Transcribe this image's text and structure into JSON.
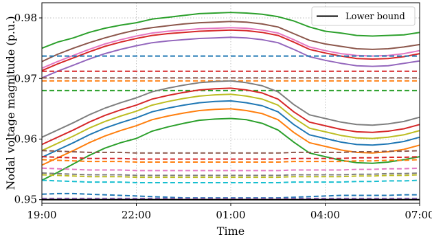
{
  "chart_data": {
    "type": "line",
    "xlabel": "Time",
    "ylabel": "Nodal voltage magnitude (p.u.)",
    "x_ticks": [
      "19:00",
      "22:00",
      "01:00",
      "04:00",
      "07:00"
    ],
    "y_ticks": [
      "0.95",
      "0.96",
      "0.97",
      "0.98"
    ],
    "y_tick_values": [
      0.95,
      0.96,
      0.97,
      0.98
    ],
    "ylim": [
      0.9494,
      0.9825
    ],
    "grid": true,
    "legend_position": "top-right",
    "legend": [
      {
        "label": "Lower bound",
        "color": "#000000",
        "dash": "solid"
      }
    ],
    "x": [
      "19:00",
      "19:30",
      "20:00",
      "20:30",
      "21:00",
      "21:30",
      "22:00",
      "22:30",
      "23:00",
      "23:30",
      "00:00",
      "00:30",
      "01:00",
      "01:30",
      "02:00",
      "02:30",
      "03:00",
      "03:30",
      "04:00",
      "04:30",
      "05:00",
      "05:30",
      "06:00",
      "06:30",
      "07:00"
    ],
    "lower_bound": 0.95,
    "series": [
      {
        "color": "#2ca02c",
        "dash": "solid",
        "values": [
          0.975,
          0.976,
          0.9767,
          0.9776,
          0.9783,
          0.9788,
          0.9792,
          0.9798,
          0.9801,
          0.9804,
          0.9807,
          0.9808,
          0.9809,
          0.9808,
          0.9806,
          0.9802,
          0.9795,
          0.9785,
          0.9778,
          0.9775,
          0.9771,
          0.977,
          0.9771,
          0.9772,
          0.9776
        ]
      },
      {
        "color": "#8c564b",
        "dash": "solid",
        "values": [
          0.9728,
          0.974,
          0.975,
          0.9759,
          0.9767,
          0.9774,
          0.978,
          0.9784,
          0.9787,
          0.979,
          0.9792,
          0.9793,
          0.9794,
          0.9793,
          0.979,
          0.9785,
          0.9774,
          0.9763,
          0.9757,
          0.9753,
          0.9749,
          0.9748,
          0.9749,
          0.9752,
          0.9756
        ]
      },
      {
        "color": "#e377c2",
        "dash": "solid",
        "values": [
          0.9717,
          0.9728,
          0.9738,
          0.9748,
          0.9757,
          0.9764,
          0.977,
          0.9775,
          0.9778,
          0.978,
          0.9782,
          0.9783,
          0.9784,
          0.9783,
          0.978,
          0.9775,
          0.9764,
          0.9752,
          0.9746,
          0.9741,
          0.9738,
          0.9737,
          0.9738,
          0.9741,
          0.9746
        ]
      },
      {
        "color": "#d62728",
        "dash": "solid",
        "values": [
          0.9713,
          0.9724,
          0.9734,
          0.9744,
          0.9753,
          0.976,
          0.9766,
          0.9771,
          0.9774,
          0.9776,
          0.9778,
          0.9779,
          0.978,
          0.9779,
          0.9776,
          0.9771,
          0.976,
          0.9748,
          0.9742,
          0.9737,
          0.9733,
          0.9732,
          0.9733,
          0.9736,
          0.9741
        ]
      },
      {
        "color": "#9467bd",
        "dash": "solid",
        "values": [
          0.9701,
          0.9712,
          0.9722,
          0.9732,
          0.9741,
          0.9748,
          0.9754,
          0.9759,
          0.9762,
          0.9764,
          0.9766,
          0.9767,
          0.9768,
          0.9767,
          0.9764,
          0.9759,
          0.9748,
          0.9736,
          0.973,
          0.9725,
          0.9721,
          0.972,
          0.9721,
          0.9725,
          0.9729
        ]
      },
      {
        "color": "#1f77b4",
        "dash": "dashed",
        "values": [
          0.9737,
          0.9737,
          0.9737,
          0.9737,
          0.9737,
          0.9737,
          0.9737,
          0.9737,
          0.9737,
          0.9737,
          0.9737,
          0.9737,
          0.9737,
          0.9737,
          0.9737,
          0.9737,
          0.9737,
          0.9737,
          0.9737,
          0.9737,
          0.9737,
          0.9737,
          0.9737,
          0.9737,
          0.9737
        ]
      },
      {
        "color": "#d62728",
        "dash": "dashed",
        "values": [
          0.9712,
          0.9712,
          0.9712,
          0.9712,
          0.9712,
          0.9712,
          0.9712,
          0.9712,
          0.9712,
          0.9712,
          0.9712,
          0.9712,
          0.9712,
          0.9712,
          0.9712,
          0.9712,
          0.9712,
          0.9712,
          0.9712,
          0.9712,
          0.9712,
          0.9712,
          0.9712,
          0.9712,
          0.9712
        ]
      },
      {
        "color": "#8c564b",
        "dash": "dashed",
        "values": [
          0.9701,
          0.9701,
          0.9701,
          0.9701,
          0.9701,
          0.9701,
          0.9701,
          0.9701,
          0.9701,
          0.9701,
          0.9701,
          0.9701,
          0.9701,
          0.9701,
          0.9701,
          0.9701,
          0.9701,
          0.9701,
          0.9701,
          0.9701,
          0.9701,
          0.9701,
          0.9701,
          0.9701,
          0.9701
        ]
      },
      {
        "color": "#ff7f0e",
        "dash": "dashed",
        "values": [
          0.9696,
          0.9696,
          0.9696,
          0.9696,
          0.9696,
          0.9696,
          0.9696,
          0.9696,
          0.9696,
          0.9696,
          0.9696,
          0.9696,
          0.9696,
          0.9696,
          0.9696,
          0.9696,
          0.9696,
          0.9696,
          0.9696,
          0.9696,
          0.9696,
          0.9696,
          0.9696,
          0.9696,
          0.9696
        ]
      },
      {
        "color": "#2ca02c",
        "dash": "dashed",
        "values": [
          0.968,
          0.968,
          0.968,
          0.968,
          0.968,
          0.968,
          0.968,
          0.968,
          0.968,
          0.968,
          0.968,
          0.968,
          0.968,
          0.968,
          0.968,
          0.968,
          0.968,
          0.968,
          0.968,
          0.968,
          0.968,
          0.968,
          0.968,
          0.968,
          0.968
        ]
      },
      {
        "color": "#7f7f7f",
        "dash": "solid",
        "values": [
          0.9603,
          0.9615,
          0.9627,
          0.964,
          0.9651,
          0.966,
          0.9668,
          0.9678,
          0.9684,
          0.9689,
          0.9693,
          0.9695,
          0.9696,
          0.9693,
          0.9688,
          0.9678,
          0.9657,
          0.964,
          0.9634,
          0.9628,
          0.9624,
          0.9623,
          0.9625,
          0.9629,
          0.9636
        ]
      },
      {
        "color": "#d62728",
        "dash": "solid",
        "values": [
          0.9591,
          0.9603,
          0.9615,
          0.9628,
          0.9639,
          0.9648,
          0.9656,
          0.9666,
          0.9672,
          0.9677,
          0.9681,
          0.9683,
          0.9684,
          0.9681,
          0.9676,
          0.9666,
          0.9645,
          0.9628,
          0.9622,
          0.9616,
          0.9612,
          0.9611,
          0.9613,
          0.9617,
          0.9624
        ]
      },
      {
        "color": "#bcbd22",
        "dash": "solid",
        "values": [
          0.9581,
          0.9593,
          0.9605,
          0.9618,
          0.9629,
          0.9638,
          0.9646,
          0.9656,
          0.9662,
          0.9667,
          0.9671,
          0.9673,
          0.9674,
          0.9671,
          0.9666,
          0.9656,
          0.9635,
          0.9618,
          0.9612,
          0.9606,
          0.9602,
          0.9601,
          0.9603,
          0.9607,
          0.9614
        ]
      },
      {
        "color": "#1f77b4",
        "dash": "solid",
        "values": [
          0.957,
          0.9582,
          0.9594,
          0.9607,
          0.9618,
          0.9627,
          0.9635,
          0.9645,
          0.9651,
          0.9656,
          0.966,
          0.9662,
          0.9663,
          0.966,
          0.9655,
          0.9645,
          0.9624,
          0.9607,
          0.9601,
          0.9595,
          0.9591,
          0.959,
          0.9592,
          0.9596,
          0.9603
        ]
      },
      {
        "color": "#ff7f0e",
        "dash": "solid",
        "values": [
          0.9557,
          0.9569,
          0.9581,
          0.9594,
          0.9605,
          0.9614,
          0.9622,
          0.9632,
          0.9638,
          0.9643,
          0.9647,
          0.9649,
          0.965,
          0.9647,
          0.9642,
          0.9632,
          0.9611,
          0.9594,
          0.9588,
          0.9582,
          0.9578,
          0.9577,
          0.9579,
          0.9583,
          0.959
        ]
      },
      {
        "color": "#2ca02c",
        "dash": "solid",
        "values": [
          0.9532,
          0.9545,
          0.9559,
          0.9573,
          0.9585,
          0.9594,
          0.9601,
          0.9613,
          0.962,
          0.9626,
          0.9631,
          0.9633,
          0.9634,
          0.9632,
          0.9626,
          0.9615,
          0.9595,
          0.9577,
          0.9571,
          0.9565,
          0.9561,
          0.956,
          0.9562,
          0.9566,
          0.9571
        ]
      },
      {
        "color": "#8c564b",
        "dash": "dashed",
        "values": [
          0.9581,
          0.958,
          0.9579,
          0.9578,
          0.9578,
          0.9578,
          0.9577,
          0.9577,
          0.9577,
          0.9577,
          0.9577,
          0.9577,
          0.9577,
          0.9577,
          0.9577,
          0.9577,
          0.9578,
          0.9578,
          0.9578,
          0.9578,
          0.9579,
          0.9579,
          0.958,
          0.958,
          0.9581
        ]
      },
      {
        "color": "#d62728",
        "dash": "dashed",
        "values": [
          0.9571,
          0.957,
          0.9569,
          0.9568,
          0.9568,
          0.9568,
          0.9567,
          0.9567,
          0.9567,
          0.9567,
          0.9567,
          0.9567,
          0.9567,
          0.9567,
          0.9567,
          0.9567,
          0.9568,
          0.9568,
          0.9568,
          0.9568,
          0.9569,
          0.9569,
          0.957,
          0.957,
          0.9571
        ]
      },
      {
        "color": "#ff7f0e",
        "dash": "dashed",
        "values": [
          0.9566,
          0.9565,
          0.9564,
          0.9563,
          0.9563,
          0.9563,
          0.9562,
          0.9562,
          0.9562,
          0.9562,
          0.9562,
          0.9562,
          0.9562,
          0.9562,
          0.9562,
          0.9562,
          0.9563,
          0.9563,
          0.9563,
          0.9563,
          0.9564,
          0.9564,
          0.9565,
          0.9565,
          0.9566
        ]
      },
      {
        "color": "#e377c2",
        "dash": "dashed",
        "values": [
          0.9552,
          0.9551,
          0.955,
          0.9549,
          0.9549,
          0.9549,
          0.9548,
          0.9548,
          0.9548,
          0.9548,
          0.9548,
          0.9548,
          0.9548,
          0.9548,
          0.9548,
          0.9548,
          0.9549,
          0.9549,
          0.9549,
          0.9549,
          0.955,
          0.955,
          0.9551,
          0.9551,
          0.9552
        ]
      },
      {
        "color": "#7f7f7f",
        "dash": "dashed",
        "values": [
          0.9544,
          0.9543,
          0.9542,
          0.9541,
          0.9541,
          0.9541,
          0.954,
          0.954,
          0.954,
          0.954,
          0.954,
          0.954,
          0.954,
          0.954,
          0.954,
          0.954,
          0.9541,
          0.9541,
          0.9541,
          0.9541,
          0.9542,
          0.9542,
          0.9543,
          0.9543,
          0.9544
        ]
      },
      {
        "color": "#bcbd22",
        "dash": "dashed",
        "values": [
          0.9541,
          0.954,
          0.9539,
          0.9538,
          0.9538,
          0.9538,
          0.9537,
          0.9537,
          0.9537,
          0.9537,
          0.9537,
          0.9537,
          0.9537,
          0.9537,
          0.9537,
          0.9537,
          0.9538,
          0.9538,
          0.9538,
          0.9538,
          0.9539,
          0.9539,
          0.954,
          0.954,
          0.9541
        ]
      },
      {
        "color": "#17becf",
        "dash": "dashed",
        "values": [
          0.9532,
          0.9531,
          0.953,
          0.9529,
          0.9529,
          0.9529,
          0.9528,
          0.9528,
          0.9528,
          0.9528,
          0.9528,
          0.9528,
          0.9528,
          0.9528,
          0.9528,
          0.9528,
          0.9529,
          0.9529,
          0.9529,
          0.9529,
          0.953,
          0.953,
          0.9531,
          0.9531,
          0.9532
        ]
      },
      {
        "color": "#1f77b4",
        "dash": "dashed",
        "values": [
          0.9509,
          0.951,
          0.951,
          0.9509,
          0.9508,
          0.9507,
          0.9506,
          0.9505,
          0.9504,
          0.9503,
          0.9503,
          0.9503,
          0.9503,
          0.9503,
          0.9503,
          0.9503,
          0.9504,
          0.9505,
          0.9506,
          0.9507,
          0.9507,
          0.9507,
          0.9507,
          0.9508,
          0.9508
        ]
      },
      {
        "color": "#9467bd",
        "dash": "dashed",
        "values": [
          0.9502,
          0.9502,
          0.9502,
          0.9502,
          0.9502,
          0.9502,
          0.9502,
          0.9502,
          0.9502,
          0.9502,
          0.9502,
          0.9502,
          0.9502,
          0.9502,
          0.9502,
          0.9502,
          0.9502,
          0.9502,
          0.9502,
          0.9502,
          0.9502,
          0.9502,
          0.9502,
          0.9502,
          0.9502
        ]
      }
    ]
  }
}
